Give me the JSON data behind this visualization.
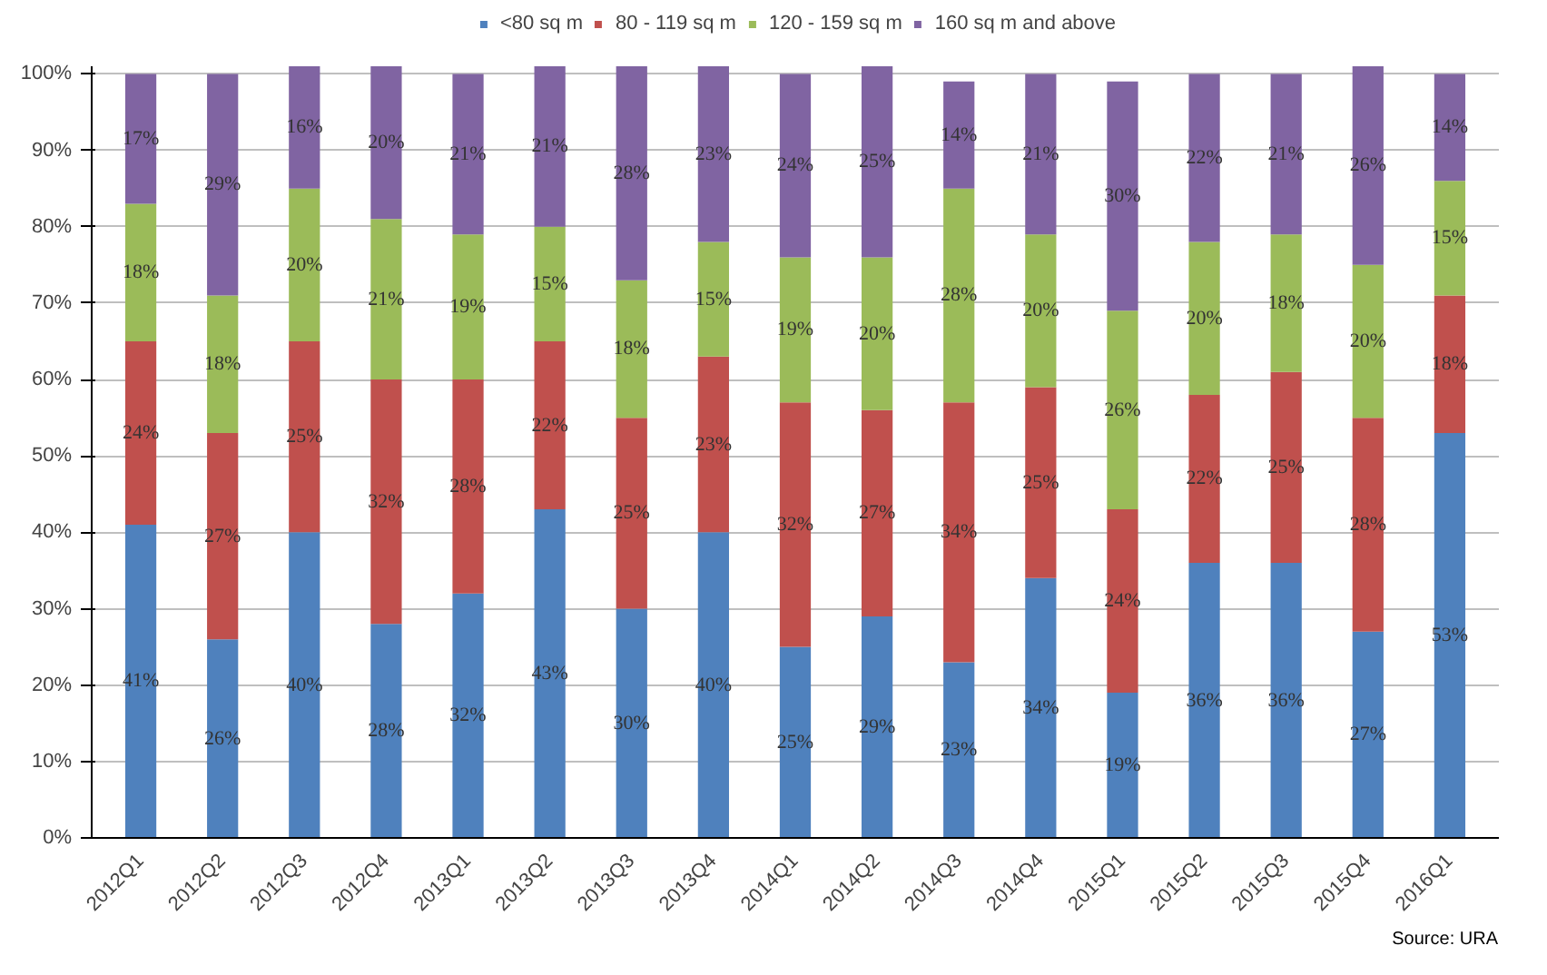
{
  "chart_data": {
    "type": "bar",
    "stacked": true,
    "categories": [
      "2012Q1",
      "2012Q2",
      "2012Q3",
      "2012Q4",
      "2013Q1",
      "2013Q2",
      "2013Q3",
      "2013Q4",
      "2014Q1",
      "2014Q2",
      "2014Q3",
      "2014Q4",
      "2015Q1",
      "2015Q2",
      "2015Q3",
      "2015Q4",
      "2016Q1"
    ],
    "series": [
      {
        "name": "<80 sq m",
        "color": "#4f81bd",
        "values": [
          41,
          26,
          40,
          28,
          32,
          43,
          30,
          40,
          25,
          29,
          23,
          34,
          19,
          36,
          36,
          27,
          53
        ],
        "value_labels": [
          "41%",
          "26%",
          "40%",
          "28%",
          "32%",
          "43%",
          "30%",
          "40%",
          "25%",
          "29%",
          "23%",
          "34%",
          "19%",
          "36%",
          "36%",
          "27%",
          "53%"
        ]
      },
      {
        "name": "80 - 119 sq m",
        "color": "#c0504d",
        "values": [
          24,
          27,
          25,
          32,
          28,
          22,
          25,
          23,
          32,
          27,
          34,
          25,
          24,
          22,
          25,
          28,
          18
        ],
        "value_labels": [
          "24%",
          "27%",
          "25%",
          "32%",
          "28%",
          "22%",
          "25%",
          "23%",
          "32%",
          "27%",
          "34%",
          "25%",
          "24%",
          "22%",
          "25%",
          "28%",
          "18%"
        ]
      },
      {
        "name": "120 - 159 sq m",
        "color": "#9bbb59",
        "values": [
          18,
          18,
          20,
          21,
          19,
          15,
          18,
          15,
          19,
          20,
          28,
          20,
          26,
          20,
          18,
          20,
          15
        ],
        "value_labels": [
          "18%",
          "18%",
          "20%",
          "21%",
          "19%",
          "15%",
          "18%",
          "15%",
          "19%",
          "20%",
          "28%",
          "20%",
          "26%",
          "20%",
          "18%",
          "20%",
          "15%"
        ]
      },
      {
        "name": "160 sq m and above",
        "color": "#8064a2",
        "values": [
          17,
          29,
          16,
          20,
          21,
          21,
          28,
          23,
          24,
          25,
          14,
          21,
          30,
          22,
          21,
          26,
          14
        ],
        "value_labels": [
          "17%",
          "29%",
          "16%",
          "20%",
          "21%",
          "21%",
          "28%",
          "23%",
          "24%",
          "25%",
          "14%",
          "21%",
          "30%",
          "22%",
          "21%",
          "26%",
          "14%"
        ]
      }
    ],
    "ylim": [
      0,
      101
    ],
    "yticks": [
      {
        "value": 0,
        "label": "0%"
      },
      {
        "value": 10,
        "label": "10%"
      },
      {
        "value": 20,
        "label": "20%"
      },
      {
        "value": 30,
        "label": "30%"
      },
      {
        "value": 40,
        "label": "40%"
      },
      {
        "value": 50,
        "label": "50%"
      },
      {
        "value": 60,
        "label": "60%"
      },
      {
        "value": 70,
        "label": "70%"
      },
      {
        "value": 80,
        "label": "80%"
      },
      {
        "value": 90,
        "label": "90%"
      },
      {
        "value": 100,
        "label": "100%"
      }
    ],
    "grid": "y",
    "legend": "top",
    "annotations": [
      "Source: URA"
    ]
  }
}
